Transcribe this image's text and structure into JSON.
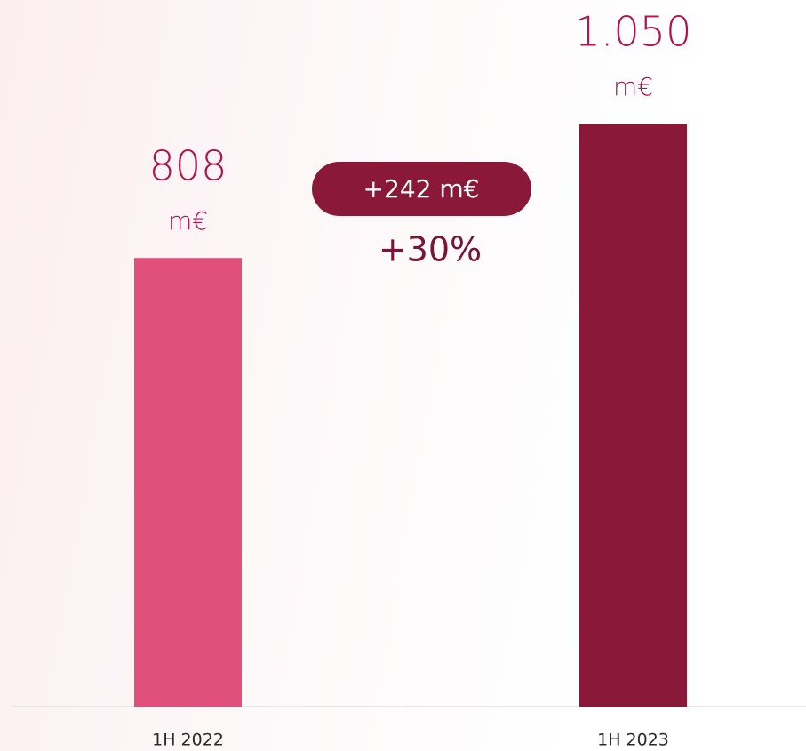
{
  "chart_data": {
    "type": "bar",
    "categories": [
      "1H 2022",
      "1H 2023"
    ],
    "values": [
      808,
      1050
    ],
    "value_labels": [
      "808",
      "1.050"
    ],
    "unit": "m€",
    "colors": [
      "#e0507a",
      "#8a1838"
    ],
    "annotations": {
      "difference": "+242 m€",
      "change": "+30%"
    }
  }
}
